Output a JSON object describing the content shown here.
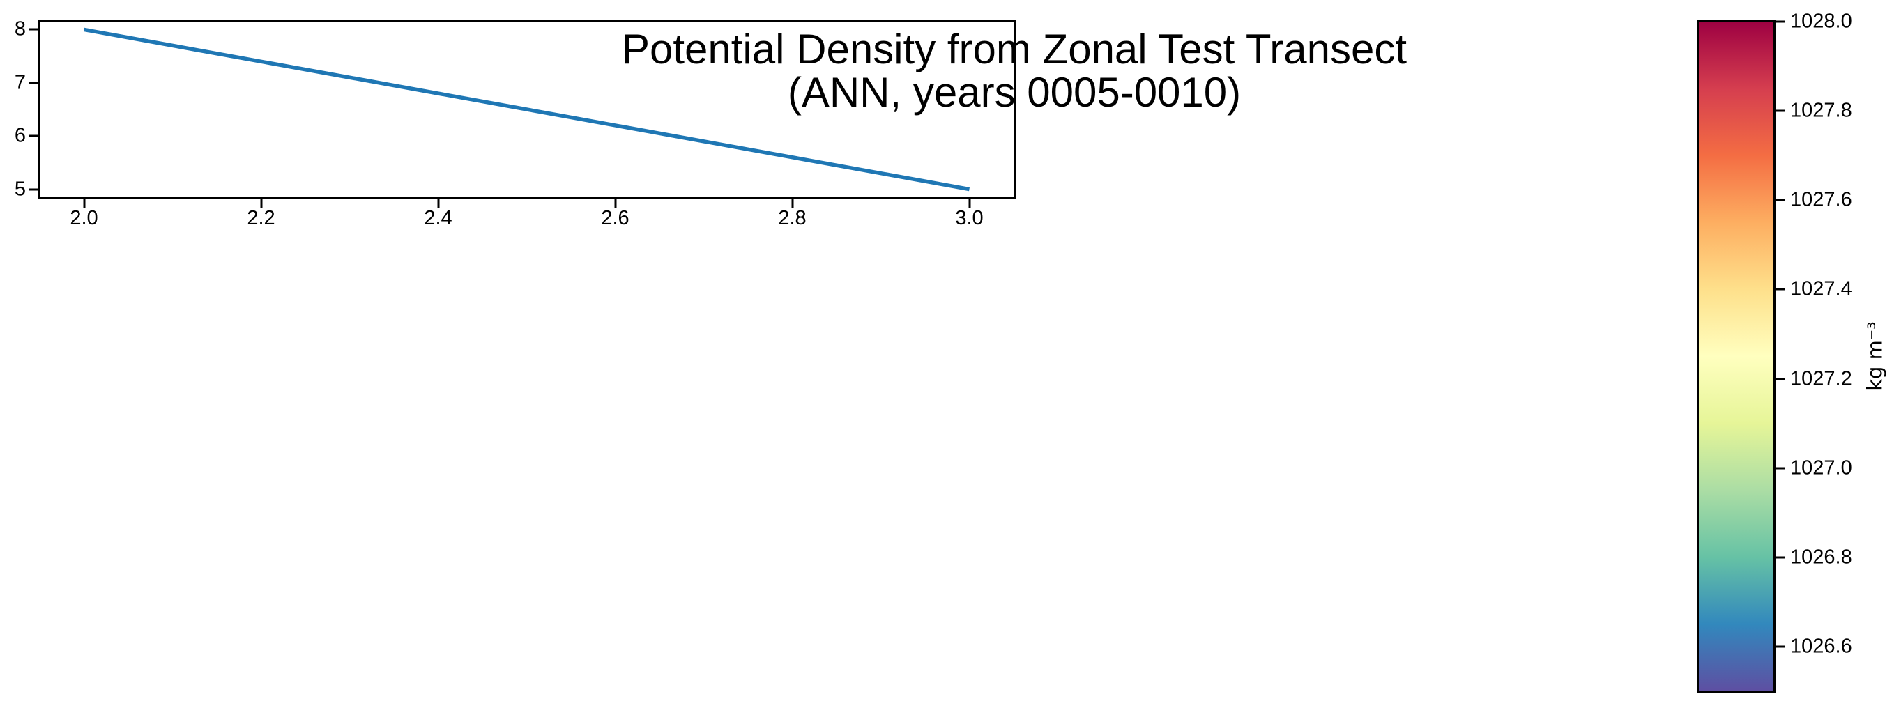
{
  "figure": {
    "background": "#ffffff"
  },
  "chart_data": {
    "type": "line",
    "title_line1": "Potential Density from Zonal Test Transect",
    "title_line2": "(ANN, years 0005-0010)",
    "xlabel": "",
    "ylabel": "",
    "grid": false,
    "xlim": [
      1.95,
      3.05
    ],
    "ylim": [
      4.85,
      8.15
    ],
    "x_ticks": [
      {
        "value": 2.0,
        "label": "2.0"
      },
      {
        "value": 2.2,
        "label": "2.2"
      },
      {
        "value": 2.4,
        "label": "2.4"
      },
      {
        "value": 2.6,
        "label": "2.6"
      },
      {
        "value": 2.8,
        "label": "2.8"
      },
      {
        "value": 3.0,
        "label": "3.0"
      }
    ],
    "y_ticks": [
      {
        "value": 8,
        "label": "8"
      },
      {
        "value": 7,
        "label": "7"
      },
      {
        "value": 6,
        "label": "6"
      },
      {
        "value": 5,
        "label": "5"
      }
    ],
    "series": [
      {
        "name": "potential_density_transect",
        "color": "#1f77b4",
        "line_width": 5.5,
        "x": [
          2.0,
          3.0
        ],
        "y": [
          8.0,
          5.0
        ]
      }
    ],
    "colorbar": {
      "label": "kg m⁻³",
      "min": 1026.5,
      "max": 1028.0,
      "colormap": "Spectral",
      "ticks": [
        {
          "value": 1028.0,
          "label": "1028.0"
        },
        {
          "value": 1027.8,
          "label": "1027.8"
        },
        {
          "value": 1027.6,
          "label": "1027.6"
        },
        {
          "value": 1027.4,
          "label": "1027.4"
        },
        {
          "value": 1027.2,
          "label": "1027.2"
        },
        {
          "value": 1027.0,
          "label": "1027.0"
        },
        {
          "value": 1026.8,
          "label": "1026.8"
        },
        {
          "value": 1026.6,
          "label": "1026.6"
        }
      ],
      "gradient_stops": [
        {
          "pos": 0.0,
          "color": "#9e0142"
        },
        {
          "pos": 0.1,
          "color": "#d53e4f"
        },
        {
          "pos": 0.2,
          "color": "#f46d43"
        },
        {
          "pos": 0.3,
          "color": "#fdae61"
        },
        {
          "pos": 0.4,
          "color": "#fee08b"
        },
        {
          "pos": 0.5,
          "color": "#ffffbf"
        },
        {
          "pos": 0.6,
          "color": "#e6f598"
        },
        {
          "pos": 0.7,
          "color": "#abdda4"
        },
        {
          "pos": 0.8,
          "color": "#66c2a5"
        },
        {
          "pos": 0.9,
          "color": "#3288bd"
        },
        {
          "pos": 1.0,
          "color": "#5e4fa2"
        }
      ]
    }
  }
}
